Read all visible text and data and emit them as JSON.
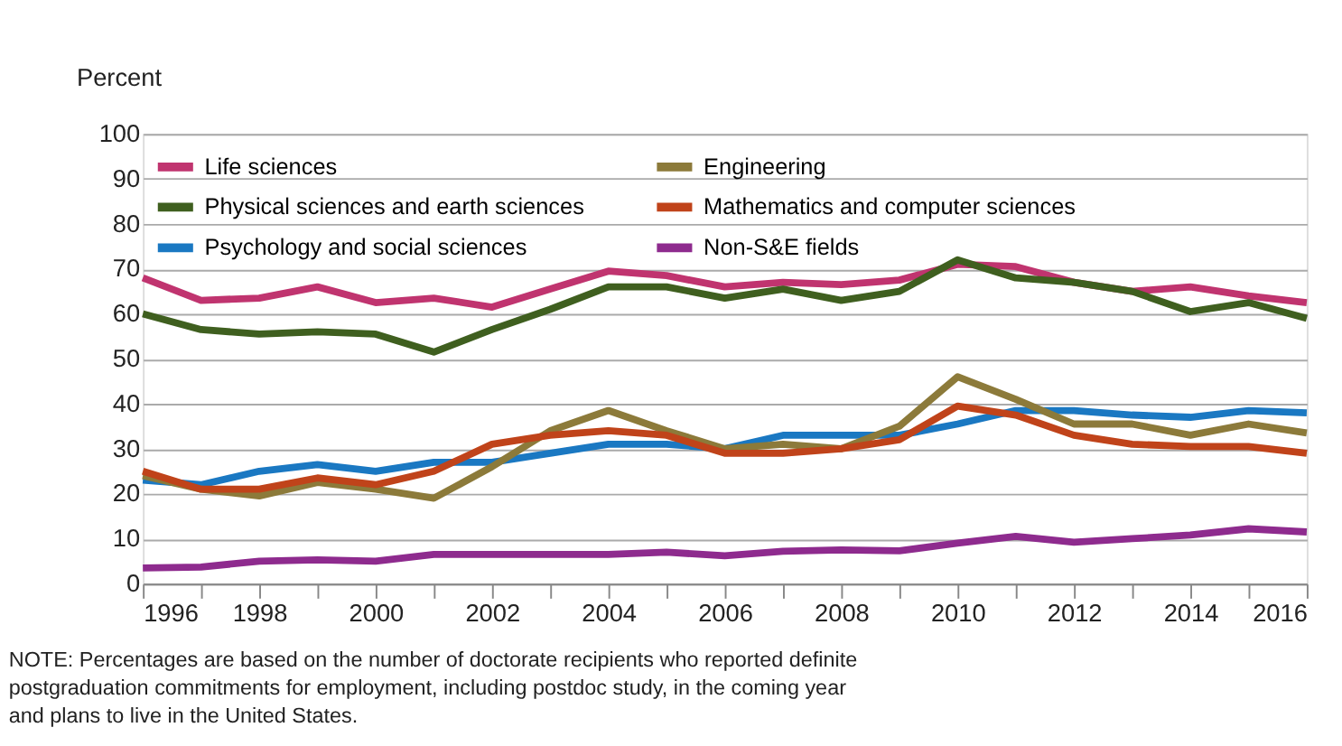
{
  "chart_data": {
    "type": "line",
    "ylabel": "Percent",
    "x": [
      1996,
      1997,
      1998,
      1999,
      2000,
      2001,
      2002,
      2003,
      2004,
      2005,
      2006,
      2007,
      2008,
      2009,
      2010,
      2011,
      2012,
      2013,
      2014,
      2015,
      2016
    ],
    "series": [
      {
        "name": "Life sciences",
        "color": "#c0346f",
        "values": [
          68,
          63,
          63.5,
          66,
          62.5,
          63.5,
          61.5,
          65.5,
          69.5,
          68.5,
          66,
          67,
          66.5,
          67.5,
          71,
          70.5,
          67,
          65,
          66,
          64,
          62.5
        ]
      },
      {
        "name": "Physical sciences and earth sciences",
        "color": "#3f5f1f",
        "values": [
          60,
          56.5,
          55.5,
          56,
          55.5,
          51.5,
          56.5,
          61,
          66,
          66,
          63.5,
          65.5,
          63,
          65,
          72,
          68,
          67,
          65,
          60.5,
          62.5,
          59
        ]
      },
      {
        "name": "Psychology and social sciences",
        "color": "#1a78c2",
        "values": [
          23,
          22,
          25,
          26.5,
          25,
          27,
          27,
          29,
          31,
          31,
          30,
          33,
          33,
          33,
          35.5,
          38.5,
          38.5,
          37.5,
          37,
          38.5,
          38
        ]
      },
      {
        "name": "Engineering",
        "color": "#8c7a3a",
        "values": [
          24,
          21,
          19.5,
          22.5,
          21,
          19,
          26,
          34,
          38.5,
          34,
          30,
          31,
          30,
          35,
          46,
          41,
          35.5,
          35.5,
          33,
          35.5,
          33.5
        ]
      },
      {
        "name": "Mathematics and computer sciences",
        "color": "#c0431a",
        "values": [
          25,
          21,
          21,
          23.5,
          22,
          25,
          31,
          33,
          34,
          33,
          29,
          29,
          30,
          32,
          39.5,
          37.5,
          33,
          31,
          30.5,
          30.5,
          29
        ]
      },
      {
        "name": "Non-S&E fields",
        "color": "#8e2b8e",
        "values": [
          3.5,
          3.7,
          5,
          5.3,
          5,
          6.5,
          6.5,
          6.5,
          6.5,
          7,
          6.2,
          7.2,
          7.5,
          7.3,
          9,
          10.5,
          9.2,
          10,
          10.8,
          12.2,
          11.5
        ]
      }
    ],
    "xlim": [
      1996,
      2016
    ],
    "xticks": [
      1996,
      {
        "value": 1997,
        "label": null
      },
      1998,
      {
        "value": 1999,
        "label": null
      },
      2000,
      {
        "value": 2001,
        "label": null
      },
      2002,
      {
        "value": 2003,
        "label": null
      },
      2004,
      {
        "value": 2005,
        "label": null
      },
      2006,
      {
        "value": 2007,
        "label": null
      },
      2008,
      {
        "value": 2009,
        "label": null
      },
      2010,
      {
        "value": 2011,
        "label": null
      },
      2012,
      {
        "value": 2013,
        "label": null
      },
      2014,
      {
        "value": 2015,
        "label": null
      },
      2016
    ],
    "ylim": [
      0,
      100
    ],
    "yticks": [
      0,
      10,
      20,
      30,
      40,
      50,
      60,
      70,
      80,
      90,
      100
    ],
    "grid": "y",
    "legend": "top",
    "line_style": "solid",
    "marker": "none",
    "annotations": [
      "NOTE: Percentages are based on the number of doctorate recipients who reported definite postgraduation commitments for employment, including postdoc study, in the coming year and plans to live in the United States."
    ]
  }
}
